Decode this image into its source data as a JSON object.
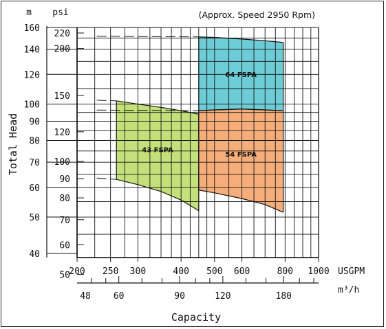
{
  "chart_data": {
    "type": "area",
    "title": "",
    "annotation": "(Approx. Speed 2950 Rpm)",
    "ylabel": "Total Head",
    "xlabel": "Capacity",
    "x_scale": "log",
    "y_scale": "log",
    "xlim": [
      200,
      1000
    ],
    "ylim_m": [
      39,
      160
    ],
    "axis_units": {
      "m": "m",
      "psi": "psi",
      "usgpm": "USGPM",
      "m3h": "m³/h"
    },
    "usgpm_ticks": [
      200,
      250,
      300,
      400,
      500,
      600,
      800,
      1000
    ],
    "usgpm_tick_labels": [
      "200",
      "250",
      "300",
      "400",
      "500",
      "600",
      "800",
      "1000"
    ],
    "m3h_ticks": [
      48,
      60,
      90,
      120,
      180
    ],
    "m3h_tick_labels": [
      "48",
      "60",
      "90",
      "120",
      "180"
    ],
    "m_ticks": [
      40,
      50,
      60,
      70,
      80,
      90,
      100,
      120,
      140,
      160
    ],
    "m_tick_labels": [
      "40",
      "50",
      "60",
      "70",
      "80",
      "90",
      "100",
      "120",
      "140",
      "160"
    ],
    "psi_ticks": [
      50,
      60,
      70,
      80,
      90,
      100,
      120,
      150,
      200,
      220
    ],
    "psi_tick_labels": [
      "50",
      "60",
      "70",
      "80",
      "90",
      "100",
      "120",
      "150",
      "200",
      "220"
    ],
    "grid": true,
    "series": [
      {
        "name": "43 FSPA",
        "color": "#c3e07a",
        "x": [
          260,
          300,
          350,
          400,
          450
        ],
        "upper_m": [
          102,
          100,
          98,
          96,
          94
        ],
        "lower_m": [
          63,
          61,
          58.5,
          55.5,
          52
        ]
      },
      {
        "name": "54 FSPA",
        "color": "#f5ad7a",
        "x": [
          450,
          500,
          600,
          700,
          790
        ],
        "upper_m": [
          96,
          96.5,
          97,
          96.5,
          96
        ],
        "lower_m": [
          59,
          58,
          56,
          54,
          51.5
        ]
      },
      {
        "name": "64 FSPA",
        "color": "#6dccd6",
        "x": [
          450,
          500,
          600,
          700,
          790
        ],
        "upper_m": [
          151,
          150.5,
          149,
          147.5,
          146
        ],
        "lower_m": [
          96,
          96.5,
          97,
          96.5,
          96
        ]
      }
    ]
  }
}
